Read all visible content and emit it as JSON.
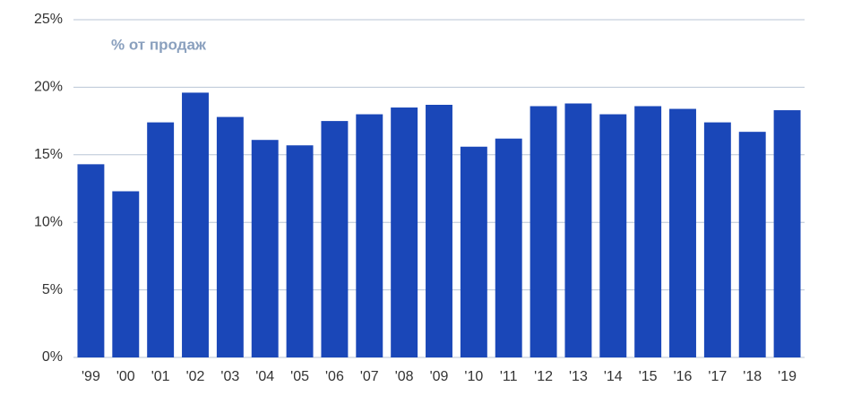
{
  "chart_data": {
    "type": "bar",
    "title": "% от продаж",
    "categories": [
      "'99",
      "'00",
      "'01",
      "'02",
      "'03",
      "'04",
      "'05",
      "'06",
      "'07",
      "'08",
      "'09",
      "'10",
      "'11",
      "'12",
      "'13",
      "'14",
      "'15",
      "'16",
      "'17",
      "'18",
      "'19"
    ],
    "values": [
      14.3,
      12.3,
      17.4,
      19.6,
      17.8,
      16.1,
      15.7,
      17.5,
      18.0,
      18.5,
      18.7,
      15.6,
      16.2,
      18.6,
      18.8,
      18.0,
      18.6,
      18.4,
      17.4,
      16.7,
      18.3
    ],
    "color": "#1a47b8",
    "ylim": [
      0,
      25
    ],
    "yticks": [
      {
        "value": 0,
        "label": "0%"
      },
      {
        "value": 5,
        "label": "5%"
      },
      {
        "value": 10,
        "label": "10%"
      },
      {
        "value": 15,
        "label": "15%"
      },
      {
        "value": 20,
        "label": "20%"
      },
      {
        "value": 25,
        "label": "25%"
      }
    ],
    "grid": true
  }
}
